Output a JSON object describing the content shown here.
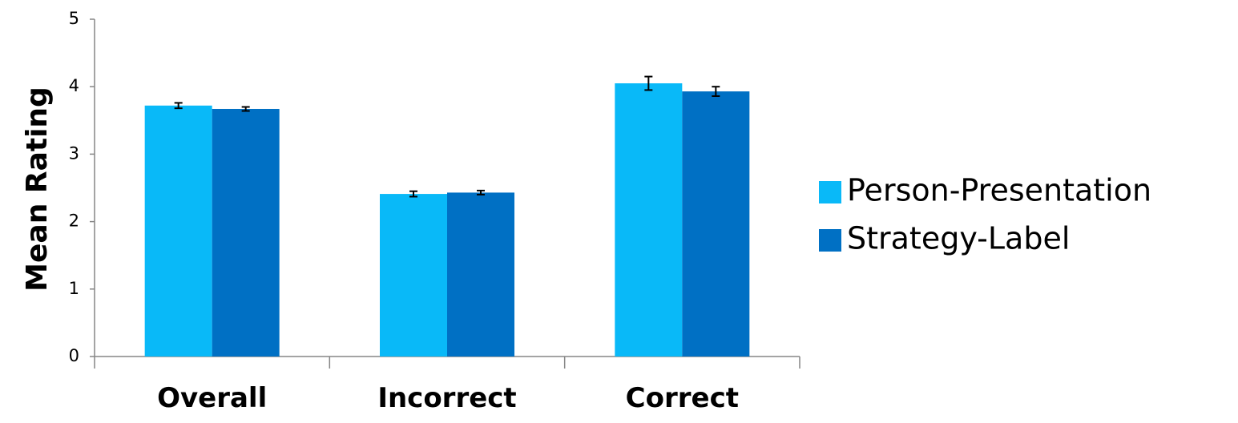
{
  "chart_data": {
    "type": "bar",
    "ylabel": "Mean Rating",
    "xlabel": "",
    "ylim": [
      0,
      5
    ],
    "yticks": [
      "0",
      "1",
      "2",
      "3",
      "4",
      "5"
    ],
    "categories": [
      "Overall",
      "Incorrect",
      "Correct"
    ],
    "series": [
      {
        "name": "Person-Presentation",
        "color": "#09B9F8",
        "values": [
          3.72,
          2.41,
          4.05
        ],
        "error": [
          0.04,
          0.04,
          0.1
        ]
      },
      {
        "name": "Strategy-Label",
        "color": "#0070C4",
        "values": [
          3.67,
          2.43,
          3.93
        ],
        "error": [
          0.03,
          0.03,
          0.07
        ]
      }
    ],
    "grid": false,
    "legend_position": "right",
    "error_bars": true
  }
}
